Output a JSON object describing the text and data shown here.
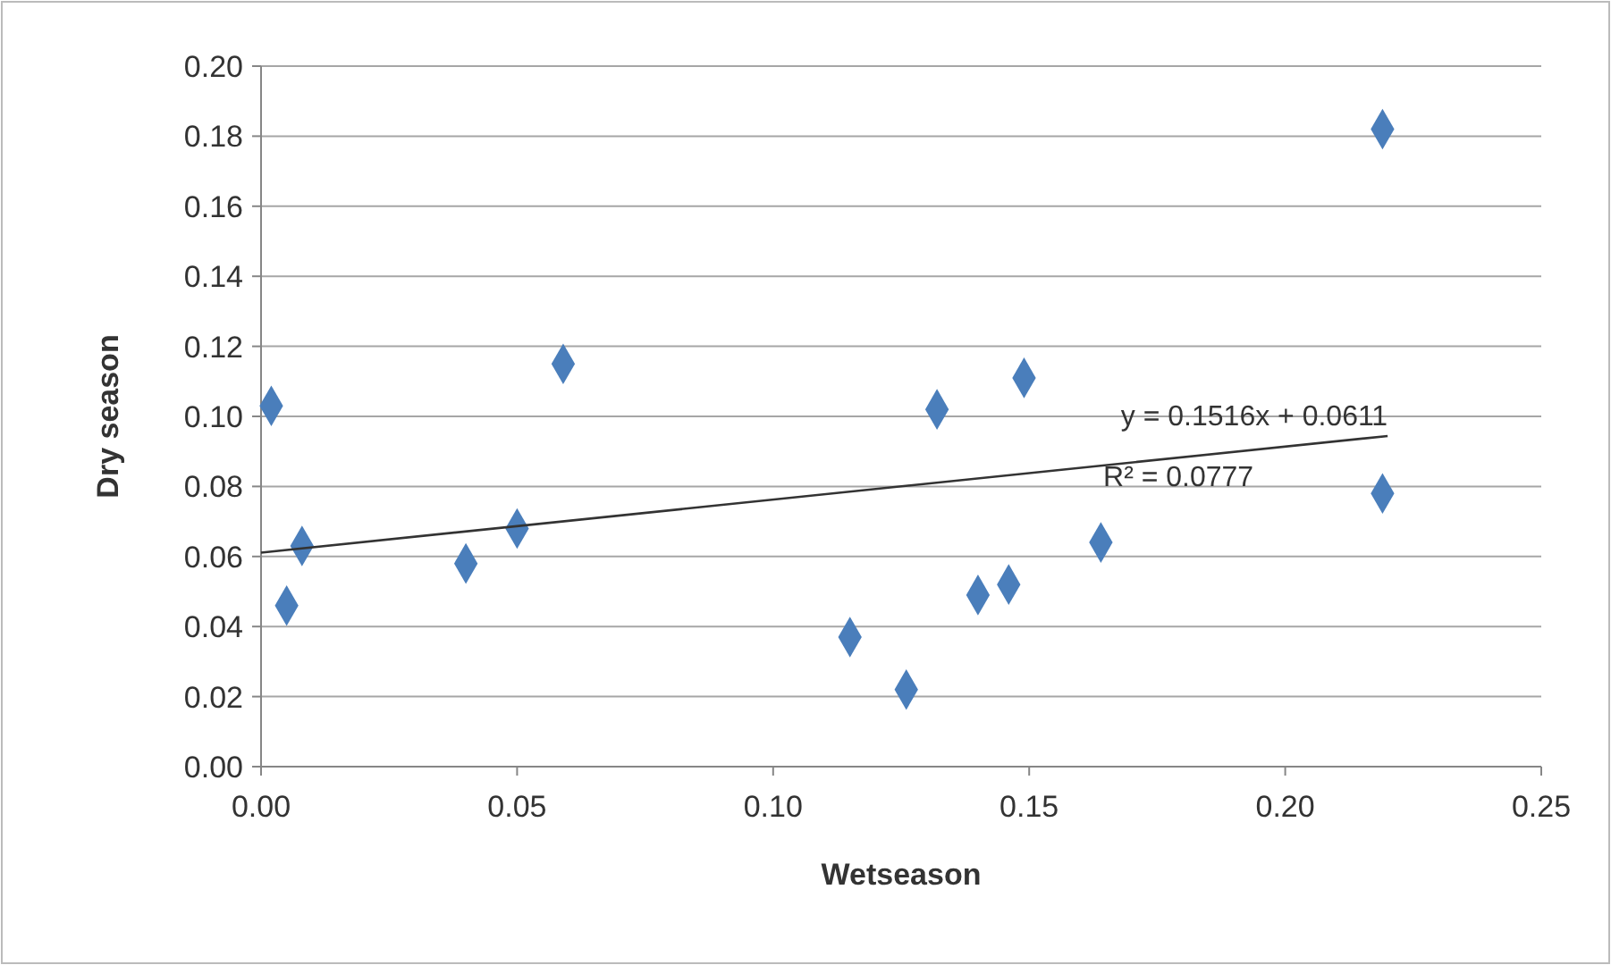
{
  "chart_data": {
    "type": "scatter",
    "xlabel": "Wetseason",
    "ylabel": "Dry season",
    "xlim": [
      0,
      0.25
    ],
    "xticks": [
      {
        "value": 0,
        "label": "0.00"
      },
      {
        "value": 0.05,
        "label": "0.05"
      },
      {
        "value": 0.1,
        "label": "0.10"
      },
      {
        "value": 0.15,
        "label": "0.15"
      },
      {
        "value": 0.2,
        "label": "0.20"
      },
      {
        "value": 0.25,
        "label": "0.25"
      }
    ],
    "ylim": [
      0,
      0.2
    ],
    "yticks": [
      {
        "value": 0,
        "label": "0.00"
      },
      {
        "value": 0.02,
        "label": "0.02"
      },
      {
        "value": 0.04,
        "label": "0.04"
      },
      {
        "value": 0.06,
        "label": "0.06"
      },
      {
        "value": 0.08,
        "label": "0.08"
      },
      {
        "value": 0.1,
        "label": "0.10"
      },
      {
        "value": 0.12,
        "label": "0.12"
      },
      {
        "value": 0.14,
        "label": "0.14"
      },
      {
        "value": 0.16,
        "label": "0.16"
      },
      {
        "value": 0.18,
        "label": "0.18"
      },
      {
        "value": 0.2,
        "label": "0.20"
      }
    ],
    "grid": "y",
    "series": [
      {
        "marker": "diamond",
        "color": "#4a7ebb",
        "x": [
          0.002,
          0.005,
          0.008,
          0.04,
          0.05,
          0.059,
          0.115,
          0.126,
          0.132,
          0.14,
          0.146,
          0.149,
          0.164,
          0.219,
          0.219
        ],
        "values": [
          0.103,
          0.046,
          0.063,
          0.058,
          0.068,
          0.115,
          0.037,
          0.022,
          0.102,
          0.049,
          0.052,
          0.111,
          0.064,
          0.182,
          0.078
        ]
      },
      {
        "type": "line",
        "color": "#333333",
        "x": [
          0,
          0.22
        ],
        "values": [
          0.0611,
          0.0944
        ]
      }
    ],
    "annotations": [
      "y = 0.1516x + 0.0611",
      "R² = 0.0777"
    ]
  }
}
